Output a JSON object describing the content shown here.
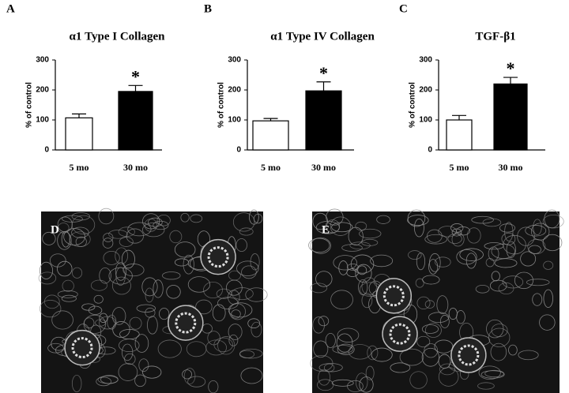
{
  "chart_data": [
    {
      "type": "bar",
      "panel_label": "A",
      "title": "α1 Type I Collagen",
      "ylabel": "% of control",
      "categories": [
        "5 mo",
        "30 mo"
      ],
      "values": [
        107,
        195
      ],
      "errors": [
        13,
        20
      ],
      "colors": [
        "#ffffff",
        "#000000"
      ],
      "annotation": "*",
      "ylim": [
        0,
        300
      ],
      "yticks": [
        0,
        100,
        200,
        300
      ]
    },
    {
      "type": "bar",
      "panel_label": "B",
      "title": "α1 Type IV Collagen",
      "ylabel": "% of control",
      "categories": [
        "5 mo",
        "30 mo"
      ],
      "values": [
        97,
        197
      ],
      "errors": [
        8,
        30
      ],
      "colors": [
        "#ffffff",
        "#000000"
      ],
      "annotation": "*",
      "ylim": [
        0,
        300
      ],
      "yticks": [
        0,
        100,
        200,
        300
      ]
    },
    {
      "type": "bar",
      "panel_label": "C",
      "title": "TGF-β1",
      "ylabel": "% of control",
      "categories": [
        "5 mo",
        "30 mo"
      ],
      "values": [
        100,
        220
      ],
      "errors": [
        15,
        22
      ],
      "colors": [
        "#ffffff",
        "#000000"
      ],
      "annotation": "*",
      "ylim": [
        0,
        300
      ],
      "yticks": [
        0,
        100,
        200,
        300
      ]
    }
  ],
  "images": [
    {
      "label": "D"
    },
    {
      "label": "E"
    }
  ]
}
